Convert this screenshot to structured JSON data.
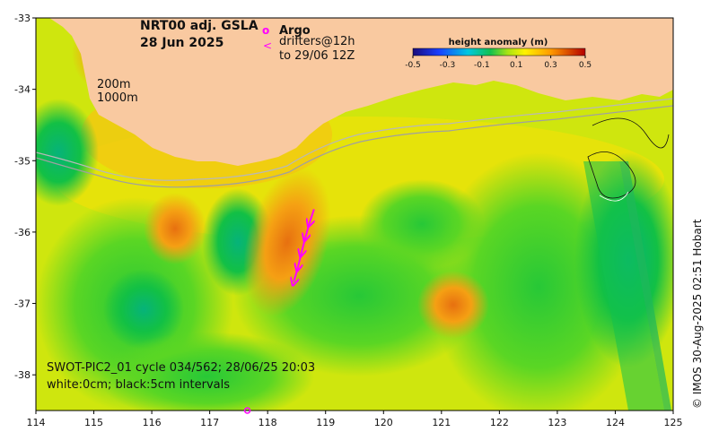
{
  "map": {
    "title_line1": "NRT00 adj. GSLA",
    "title_line2": "28 Jun 2025",
    "legend_argo_symbol": "o",
    "legend_argo_label": "Argo",
    "legend_drifter_symbol": "<",
    "legend_drifter_line1": "drifters@12h",
    "legend_drifter_line2": "to 29/06 12Z",
    "isobath_label_1": "200m",
    "isobath_label_2": "1000m",
    "swot_line1": "SWOT-PIC2_01 cycle 034/562; 28/06/25 20:03",
    "swot_line2": "white:0cm; black:5cm intervals",
    "copyright": "© IMOS 30-Aug-2025 02:51 Hobart",
    "colors": {
      "land": "#f9c9a0",
      "ocean_mid": "#cfe60e",
      "drifter": "#ff00ff",
      "argo": "#ff00ff"
    }
  },
  "colorbar": {
    "title": "height anomaly (m)",
    "ticks": [
      "-0.5",
      "-0.3",
      "-0.1",
      "0.1",
      "0.3",
      "0.5"
    ],
    "range": [
      -0.5,
      0.5
    ]
  },
  "axes": {
    "x_ticks": [
      "114",
      "115",
      "116",
      "117",
      "118",
      "119",
      "120",
      "121",
      "122",
      "123",
      "124",
      "125"
    ],
    "y_ticks": [
      "-33",
      "-34",
      "-35",
      "-36",
      "-37",
      "-38"
    ],
    "lon_range": [
      114,
      125
    ],
    "lat_range": [
      -38.5,
      -33
    ]
  },
  "drifter_track": [
    {
      "lon": 118.45,
      "lat": -36.7
    },
    {
      "lon": 118.52,
      "lat": -36.5
    },
    {
      "lon": 118.58,
      "lat": -36.3
    },
    {
      "lon": 118.65,
      "lat": -36.08
    },
    {
      "lon": 118.72,
      "lat": -35.88
    },
    {
      "lon": 118.8,
      "lat": -35.68
    }
  ],
  "argo_floats": [
    {
      "lon": 117.65,
      "lat": -38.5
    }
  ]
}
